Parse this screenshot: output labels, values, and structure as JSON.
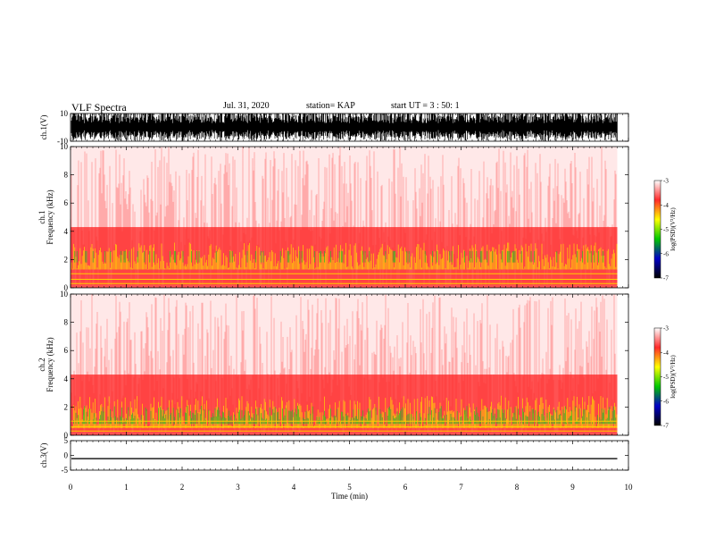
{
  "header": {
    "title": "VLF Spectra",
    "date": "Jul. 31, 2020",
    "station": "station= KAP",
    "start": "start  UT =   3 : 50: 1"
  },
  "colors": {
    "spectral_scale": [
      "#ffffff",
      "#ff2a2a",
      "#ffff00",
      "#00c800",
      "#0000c8",
      "#000000"
    ]
  },
  "chart_data": [
    {
      "type": "line",
      "panel": "ch1-waveform",
      "ylabel": "ch.1(V)",
      "ylim": [
        -10,
        10
      ],
      "yticks": [
        10,
        -10
      ],
      "xlim": [
        0,
        10
      ],
      "x_extent_min": [
        0,
        9.8
      ],
      "description_values": {
        "amplitude_range_V": [
          -10,
          10
        ]
      }
    },
    {
      "type": "heatmap",
      "panel": "ch1-spectrogram",
      "ylabel": "ch.1 Frequency (kHz)",
      "ylim": [
        0,
        10
      ],
      "yticks": [
        0,
        2,
        4,
        6,
        8,
        10
      ],
      "xlim": [
        0,
        10
      ],
      "colorbar": {
        "label": "log(PSD)(V²/Hz)",
        "range": [
          -7,
          -3
        ],
        "ticks": [
          -3,
          -4,
          -5,
          -6,
          -7
        ]
      }
    },
    {
      "type": "heatmap",
      "panel": "ch2-spectrogram",
      "ylabel": "ch.2 Frequency (kHz)",
      "ylim": [
        0,
        10
      ],
      "yticks": [
        0,
        2,
        4,
        6,
        8,
        10
      ],
      "xlim": [
        0,
        10
      ],
      "colorbar": {
        "label": "log(PSD)(V²/Hz)",
        "range": [
          -7,
          -3
        ],
        "ticks": [
          -3,
          -4,
          -5,
          -6,
          -7
        ]
      }
    },
    {
      "type": "line",
      "panel": "ch3-waveform",
      "ylabel": "ch.3(V)",
      "ylim": [
        -5,
        5
      ],
      "yticks": [
        5,
        0,
        -5
      ],
      "xlim": [
        0,
        10
      ],
      "xlabel": "Time (min)",
      "xticks": [
        0,
        1,
        2,
        3,
        4,
        5,
        6,
        7,
        8,
        9,
        10
      ],
      "signal_level_V": [
        -1.3,
        -0.9
      ]
    }
  ]
}
